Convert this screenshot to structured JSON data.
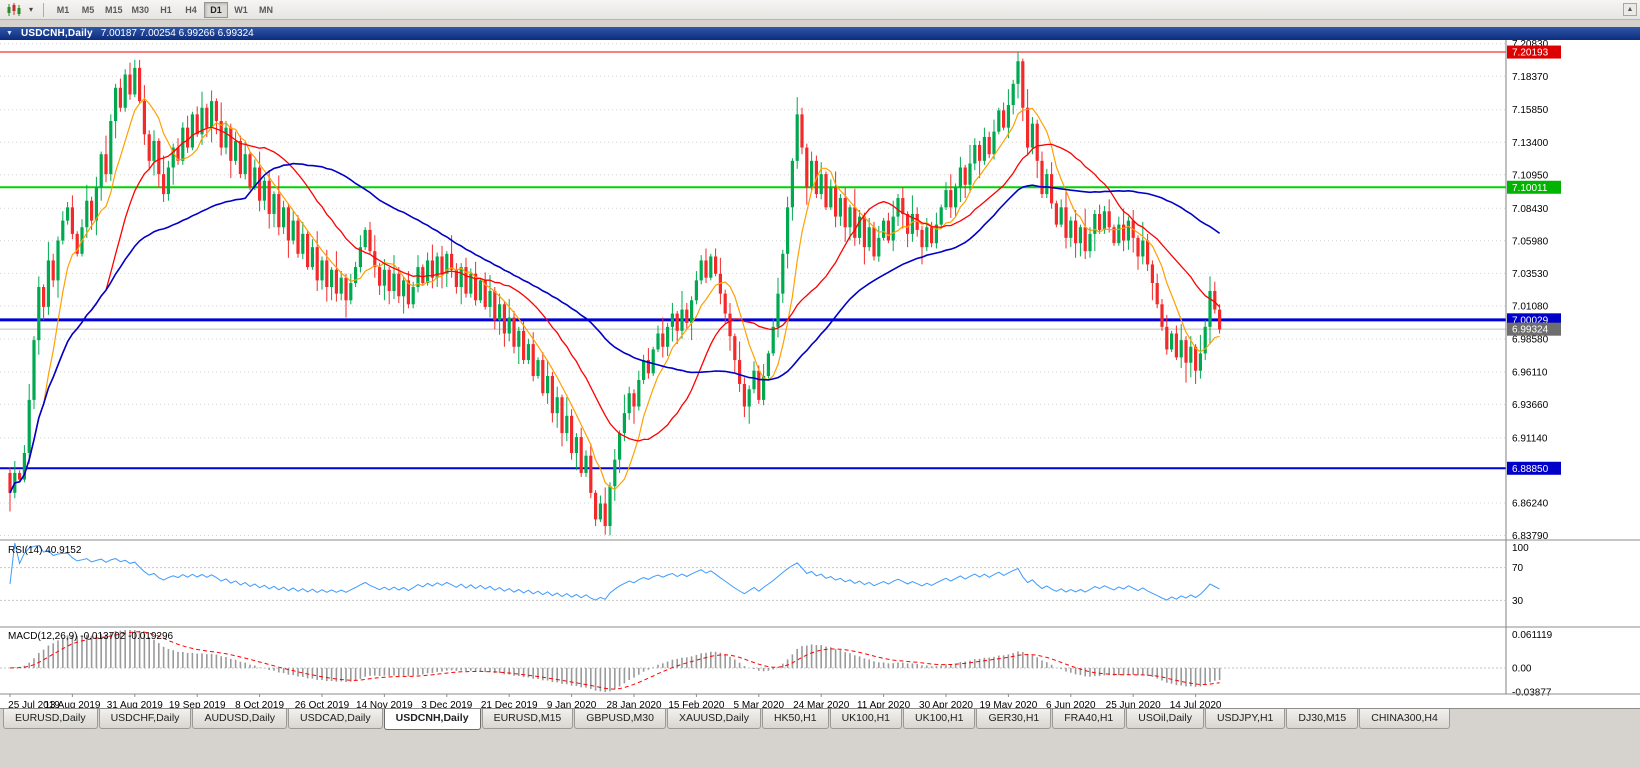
{
  "window": {
    "title_symbol": "USDCNH,Daily",
    "title_ohlc": "7.00187 7.00254 6.99266 6.99324"
  },
  "toolbar": {
    "timeframes": [
      "M1",
      "M5",
      "M15",
      "M30",
      "H1",
      "H4",
      "D1",
      "W1",
      "MN"
    ],
    "active": "D1",
    "overflow_glyph": "▲"
  },
  "tabs": {
    "items": [
      "EURUSD,Daily",
      "USDCHF,Daily",
      "AUDUSD,Daily",
      "USDCAD,Daily",
      "USDCNH,Daily",
      "EURUSD,M15",
      "GBPUSD,M30",
      "XAUUSD,Daily",
      "HK50,H1",
      "UK100,H1",
      "UK100,H1",
      "GER30,H1",
      "FRA40,H1",
      "USOil,Daily",
      "USDJPY,H1",
      "DJ30,M15",
      "CHINA300,H4"
    ],
    "active_index": 4
  },
  "chart_data": {
    "type": "candlestick",
    "symbol": "USDCNH",
    "period": "Daily",
    "x_axis": {
      "labels": [
        "25 Jul 2019",
        "13 Aug 2019",
        "31 Aug 2019",
        "19 Sep 2019",
        "8 Oct 2019",
        "26 Oct 2019",
        "14 Nov 2019",
        "3 Dec 2019",
        "21 Dec 2019",
        "9 Jan 2020",
        "28 Jan 2020",
        "15 Feb 2020",
        "5 Mar 2020",
        "24 Mar 2020",
        "11 Apr 2020",
        "30 Apr 2020",
        "19 May 2020",
        "6 Jun 2020",
        "25 Jun 2020",
        "14 Jul 2020"
      ],
      "candles_per_label": 13
    },
    "y_axis": {
      "range": [
        6.836,
        7.211
      ],
      "ticks": [
        7.2083,
        7.1837,
        7.1585,
        7.134,
        7.1095,
        7.0843,
        7.0598,
        7.0353,
        7.0108,
        6.9858,
        6.9611,
        6.9366,
        6.9114,
        6.8624,
        6.8379
      ]
    },
    "first_open": 6.885,
    "closes": [
      6.87,
      6.885,
      6.88,
      6.9,
      6.94,
      6.985,
      7.025,
      7.01,
      7.045,
      7.03,
      7.06,
      7.075,
      7.085,
      7.065,
      7.05,
      7.07,
      7.09,
      7.075,
      7.1,
      7.125,
      7.11,
      7.15,
      7.175,
      7.16,
      7.185,
      7.17,
      7.19,
      7.165,
      7.14,
      7.12,
      7.135,
      7.11,
      7.095,
      7.115,
      7.13,
      7.12,
      7.145,
      7.13,
      7.155,
      7.14,
      7.16,
      7.145,
      7.165,
      7.15,
      7.13,
      7.145,
      7.12,
      7.135,
      7.11,
      7.125,
      7.1,
      7.115,
      7.09,
      7.105,
      7.08,
      7.095,
      7.07,
      7.085,
      7.06,
      7.075,
      7.05,
      7.065,
      7.04,
      7.055,
      7.03,
      7.045,
      7.025,
      7.038,
      7.02,
      7.032,
      7.015,
      7.028,
      7.04,
      7.055,
      7.068,
      7.052,
      7.04,
      7.026,
      7.038,
      7.022,
      7.035,
      7.018,
      7.03,
      7.012,
      7.025,
      7.04,
      7.028,
      7.045,
      7.032,
      7.048,
      7.035,
      7.05,
      7.038,
      7.025,
      7.04,
      7.02,
      7.035,
      7.015,
      7.03,
      7.01,
      7.022,
      7.0,
      7.012,
      6.99,
      7.002,
      6.98,
      6.992,
      6.97,
      6.982,
      6.958,
      6.97,
      6.945,
      6.958,
      6.93,
      6.942,
      6.915,
      6.928,
      6.9,
      6.912,
      6.885,
      6.898,
      6.87,
      6.85,
      6.862,
      6.845,
      6.875,
      6.895,
      6.915,
      6.93,
      6.945,
      6.935,
      6.955,
      6.97,
      6.96,
      6.978,
      6.99,
      6.98,
      6.995,
      7.005,
      6.992,
      7.008,
      6.998,
      7.015,
      7.03,
      7.045,
      7.032,
      7.048,
      7.035,
      7.02,
      7.005,
      6.988,
      6.97,
      6.952,
      6.935,
      6.948,
      6.962,
      6.94,
      6.958,
      6.975,
      6.995,
      7.02,
      7.05,
      7.085,
      7.12,
      7.155,
      7.13,
      7.1,
      7.12,
      7.095,
      7.11,
      7.085,
      7.1,
      7.078,
      7.092,
      7.07,
      7.085,
      7.062,
      7.078,
      7.055,
      7.07,
      7.048,
      7.062,
      7.075,
      7.06,
      7.078,
      7.092,
      7.08,
      7.065,
      7.08,
      7.068,
      7.055,
      7.07,
      7.058,
      7.072,
      7.085,
      7.098,
      7.085,
      7.1,
      7.115,
      7.102,
      7.118,
      7.132,
      7.12,
      7.138,
      7.125,
      7.142,
      7.158,
      7.145,
      7.162,
      7.178,
      7.195,
      7.16,
      7.13,
      7.148,
      7.12,
      7.095,
      7.11,
      7.088,
      7.072,
      7.085,
      7.062,
      7.075,
      7.058,
      7.07,
      7.052,
      7.065,
      7.08,
      7.068,
      7.082,
      7.07,
      7.058,
      7.072,
      7.06,
      7.075,
      7.062,
      7.048,
      7.06,
      7.042,
      7.028,
      7.012,
      6.995,
      6.978,
      6.99,
      6.972,
      6.985,
      6.968,
      6.98,
      6.962,
      6.975,
      6.995,
      7.022,
      7.008,
      6.993
    ],
    "wick_up": [
      0.004,
      0.009,
      0.002,
      0.006,
      0.012,
      0.003,
      0.008,
      0.002,
      0.014,
      0.005,
      0.003,
      0.007
    ],
    "wick_dn": [
      0.005,
      0.002,
      0.01,
      0.003,
      0.007,
      0.013,
      0.002,
      0.006,
      0.004,
      0.011,
      0.003,
      0.008
    ],
    "high_overrides": {
      "26": 7.196,
      "164": 7.168,
      "210": 7.202,
      "250": 7.033
    },
    "low_overrides": {
      "0": 6.856,
      "122": 6.845,
      "124": 6.8385,
      "153": 6.927,
      "245": 6.953
    },
    "candle_colors": {
      "up": "#00A94F",
      "down": "#F42A2A"
    },
    "moving_averages": [
      {
        "period": 8,
        "color": "#FFA000",
        "width": 1.2
      },
      {
        "period": 21,
        "color": "#FF0000",
        "width": 1.3
      },
      {
        "period": 50,
        "color": "#0000C8",
        "width": 1.6
      }
    ],
    "h_lines": [
      {
        "price": 7.20193,
        "color": "#F40000",
        "width": 1,
        "badge": "#DE0000"
      },
      {
        "price": 7.10011,
        "color": "#00D400",
        "width": 2,
        "badge": "#00B400"
      },
      {
        "price": 7.00029,
        "color": "#0000D8",
        "width": 3,
        "badge": "#0000C8"
      },
      {
        "price": 6.99324,
        "color": "#BBBBBB",
        "width": 1,
        "badge": "#6E6E6E"
      },
      {
        "price": 6.8885,
        "color": "#0000D8",
        "width": 2,
        "badge": "#0000C8"
      }
    ],
    "rsi": {
      "label": "RSI(14)",
      "value": "40.9152",
      "period": 14,
      "levels": [
        70,
        30
      ],
      "scale_labels": [
        {
          "v": 100,
          "t": "100"
        },
        {
          "v": 70,
          "t": "70"
        },
        {
          "v": 30,
          "t": "30"
        }
      ],
      "color": "#3E9BFF"
    },
    "macd": {
      "label": "MACD(12,26,9)",
      "values": "-0.013702 -0.019296",
      "fast": 12,
      "slow": 26,
      "signal": 9,
      "range": [
        -0.0388,
        0.0612
      ],
      "scale": [
        {
          "v": 0.061119,
          "t": "0.061119"
        },
        {
          "v": 0,
          "t": "0.00"
        },
        {
          "v": -0.03877,
          "t": "-0.03877"
        }
      ],
      "bar_color": "#9A9A9A",
      "signal_color": "#FF0000"
    }
  }
}
